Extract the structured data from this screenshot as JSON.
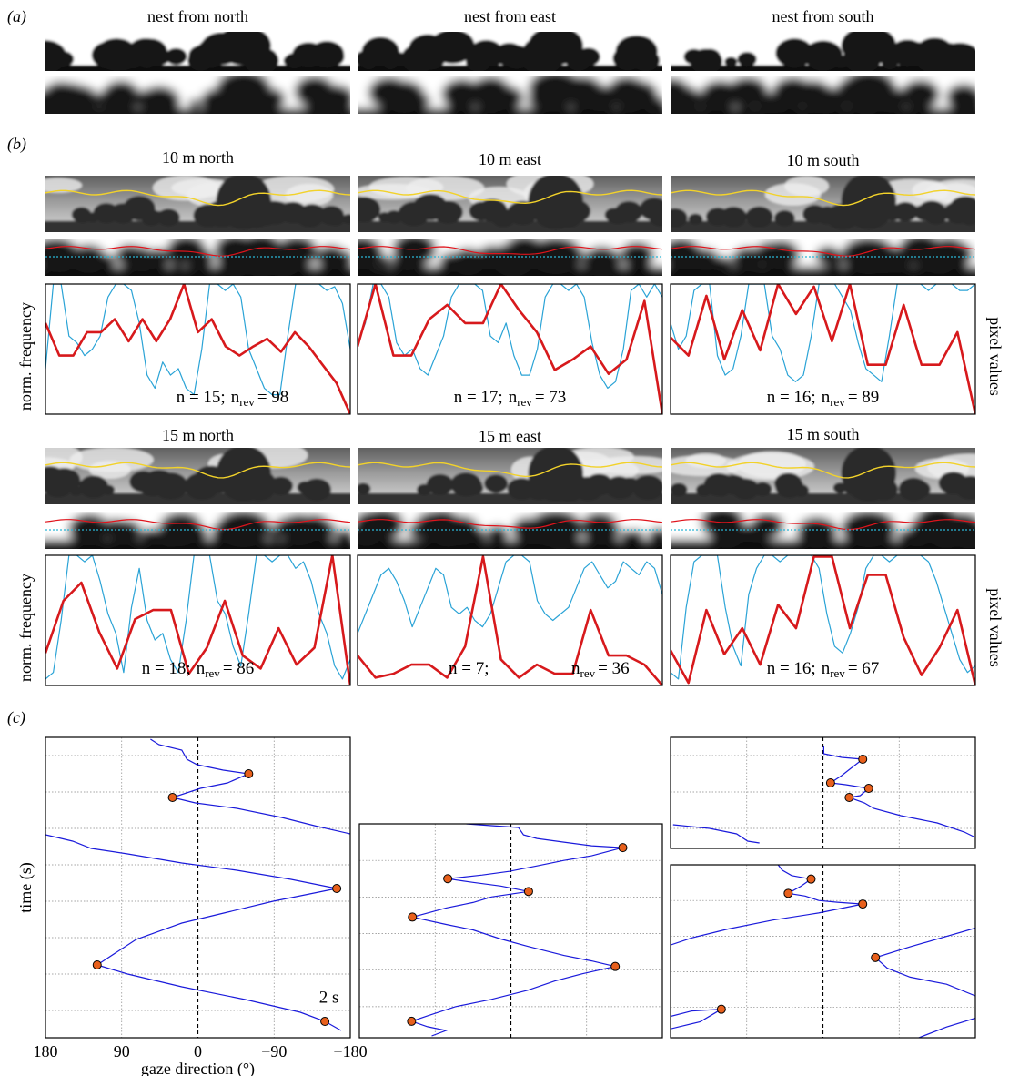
{
  "panels": {
    "a": {
      "label": "(a)",
      "titles": [
        "nest from north",
        "nest from east",
        "nest from south"
      ]
    },
    "b": {
      "label": "(b)"
    },
    "c": {
      "label": "(c)"
    }
  },
  "chart_data": [
    {
      "type": "line",
      "title": "10 m north",
      "ylabel": "norm. frequency",
      "annotation": [
        "n = 15;",
        "n",
        "rev",
        "= 98"
      ],
      "ylim": [
        0,
        1
      ],
      "y2lim": [
        0,
        1
      ],
      "series": [
        {
          "color": "#d7191c",
          "values": [
            0.7,
            0.45,
            0.45,
            0.63,
            0.63,
            0.73,
            0.56,
            0.73,
            0.56,
            0.73,
            1.0,
            0.63,
            0.73,
            0.52,
            0.45,
            0.52,
            0.58,
            0.48,
            0.63,
            0.52,
            0.38,
            0.24,
            0.0
          ]
        },
        {
          "color": "#2aa3d6",
          "axis": "y2",
          "values": [
            0.35,
            1.0,
            1.0,
            0.6,
            0.55,
            0.45,
            0.5,
            0.6,
            0.9,
            1.0,
            1.0,
            0.95,
            0.7,
            0.3,
            0.2,
            0.4,
            0.3,
            0.35,
            0.2,
            0.15,
            0.5,
            1.0,
            1.0,
            0.95,
            1.0,
            0.9,
            0.5,
            0.35,
            0.2,
            0.15,
            0.15,
            0.6,
            1.0,
            1.0,
            1.0,
            1.0,
            0.95,
            0.98,
            0.85,
            0.5
          ]
        }
      ]
    },
    {
      "type": "line",
      "title": "10 m east",
      "annotation": [
        "n = 17;",
        "n",
        "rev",
        "= 73"
      ],
      "ylim": [
        0,
        1
      ],
      "y2lim": [
        0,
        1
      ],
      "series": [
        {
          "color": "#d7191c",
          "values": [
            0.52,
            1.0,
            0.45,
            0.45,
            0.73,
            0.84,
            0.7,
            0.7,
            1.0,
            0.8,
            0.63,
            0.34,
            0.42,
            0.52,
            0.31,
            0.42,
            0.87,
            0.0
          ]
        },
        {
          "color": "#2aa3d6",
          "axis": "y2",
          "values": [
            0.55,
            0.7,
            1.0,
            1.0,
            0.9,
            0.55,
            0.45,
            0.5,
            0.35,
            0.3,
            0.45,
            0.6,
            0.9,
            1.0,
            1.0,
            1.0,
            0.95,
            0.6,
            0.55,
            0.7,
            0.45,
            0.3,
            0.3,
            0.5,
            0.9,
            1.0,
            1.0,
            0.95,
            1.0,
            0.9,
            0.55,
            0.3,
            0.2,
            0.25,
            0.5,
            0.95,
            1.0,
            0.9,
            1.0,
            0.9
          ]
        }
      ]
    },
    {
      "type": "line",
      "title": "10 m south",
      "y2label": "pixel values",
      "annotation": [
        "n = 16;",
        "n",
        "rev",
        "= 89"
      ],
      "ylim": [
        0,
        1
      ],
      "y2lim": [
        0,
        1
      ],
      "series": [
        {
          "color": "#d7191c",
          "values": [
            0.59,
            0.45,
            0.91,
            0.42,
            0.8,
            0.49,
            1.0,
            0.77,
            0.98,
            0.56,
            1.0,
            0.38,
            0.38,
            0.84,
            0.38,
            0.38,
            0.63,
            0.0
          ]
        },
        {
          "color": "#2aa3d6",
          "axis": "y2",
          "values": [
            0.7,
            0.5,
            0.6,
            0.95,
            1.0,
            1.0,
            0.45,
            0.3,
            0.35,
            0.6,
            1.0,
            1.0,
            1.0,
            0.6,
            0.5,
            0.3,
            0.25,
            0.3,
            0.6,
            1.0,
            1.0,
            1.0,
            0.9,
            0.8,
            0.55,
            0.35,
            0.3,
            0.25,
            0.6,
            1.0,
            1.0,
            1.0,
            1.0,
            0.95,
            1.0,
            1.0,
            1.0,
            0.95,
            0.95,
            1.0
          ]
        }
      ]
    },
    {
      "type": "line",
      "title": "15 m north",
      "ylabel": "norm. frequency",
      "annotation": [
        "n = 18;",
        "n",
        "rev",
        "= 86"
      ],
      "ylim": [
        0,
        1
      ],
      "y2lim": [
        0,
        1
      ],
      "series": [
        {
          "color": "#d7191c",
          "values": [
            0.25,
            0.65,
            0.79,
            0.41,
            0.13,
            0.51,
            0.58,
            0.58,
            0.09,
            0.29,
            0.65,
            0.23,
            0.13,
            0.44,
            0.16,
            0.29,
            1.0,
            0.0
          ]
        },
        {
          "color": "#2aa3d6",
          "axis": "y2",
          "values": [
            0.05,
            0.1,
            0.5,
            1.0,
            1.0,
            0.95,
            1.0,
            0.8,
            0.55,
            0.4,
            0.1,
            0.6,
            0.9,
            0.5,
            0.35,
            0.4,
            0.2,
            0.1,
            0.5,
            1.0,
            1.0,
            1.0,
            0.65,
            0.55,
            0.3,
            0.15,
            0.55,
            1.0,
            1.0,
            0.95,
            1.0,
            1.0,
            0.9,
            0.95,
            0.8,
            0.55,
            0.4,
            0.15,
            0.05,
            0.2
          ]
        }
      ]
    },
    {
      "type": "line",
      "title": "15 m east",
      "annotation": [
        "n = 7;",
        "n",
        "rev",
        "= 36"
      ],
      "ylim": [
        0,
        1
      ],
      "y2lim": [
        0,
        1
      ],
      "series": [
        {
          "color": "#d7191c",
          "values": [
            0.23,
            0.06,
            0.09,
            0.16,
            0.16,
            0.06,
            0.3,
            0.99,
            0.2,
            0.06,
            0.16,
            0.09,
            0.09,
            0.58,
            0.23,
            0.23,
            0.16,
            0.0
          ]
        },
        {
          "color": "#2aa3d6",
          "axis": "y2",
          "values": [
            0.4,
            0.55,
            0.7,
            0.85,
            0.9,
            0.8,
            0.65,
            0.45,
            0.6,
            0.75,
            0.9,
            0.85,
            0.6,
            0.55,
            0.6,
            0.5,
            0.45,
            0.55,
            0.75,
            0.95,
            1.0,
            1.0,
            0.95,
            0.65,
            0.55,
            0.5,
            0.55,
            0.6,
            0.75,
            0.9,
            0.95,
            0.85,
            0.75,
            0.8,
            0.95,
            0.9,
            0.85,
            0.95,
            0.9,
            0.7
          ]
        }
      ]
    },
    {
      "type": "line",
      "title": "15 m south",
      "y2label": "pixel values",
      "annotation": [
        "n = 16;",
        "n",
        "rev",
        "= 67"
      ],
      "ylim": [
        0,
        1
      ],
      "y2lim": [
        0,
        1
      ],
      "series": [
        {
          "color": "#d7191c",
          "values": [
            0.27,
            0.02,
            0.58,
            0.24,
            0.44,
            0.16,
            0.62,
            0.44,
            0.99,
            0.99,
            0.44,
            0.85,
            0.85,
            0.37,
            0.08,
            0.29,
            0.58,
            0.0
          ]
        },
        {
          "color": "#2aa3d6",
          "axis": "y2",
          "values": [
            0.1,
            0.05,
            0.6,
            0.95,
            1.0,
            1.0,
            1.0,
            0.6,
            0.3,
            0.15,
            0.7,
            0.9,
            1.0,
            1.0,
            0.95,
            1.0,
            1.0,
            1.0,
            1.0,
            0.9,
            0.55,
            0.3,
            0.25,
            0.4,
            0.6,
            0.9,
            1.0,
            1.0,
            0.95,
            1.0,
            1.0,
            1.0,
            1.0,
            0.95,
            0.8,
            0.6,
            0.4,
            0.2,
            0.1,
            0.15
          ]
        }
      ]
    },
    {
      "type": "line",
      "xlabel": "gaze direction (°)",
      "ylabel": "time (s)",
      "annotation": "2 s",
      "tick_labels": true,
      "grid": true,
      "xlim": [
        180,
        -180
      ],
      "xticks": [
        180,
        90,
        0,
        {
          "value": -90,
          "label": "−90"
        },
        {
          "value": -180,
          "label": "−180"
        }
      ],
      "ylim": [
        16.5,
        0
      ],
      "yticks": [
        1,
        3,
        5,
        7,
        9,
        11,
        13,
        15
      ],
      "series": [
        {
          "color": "#1a1adb",
          "x": [
            56,
            46,
            19,
            13,
            1,
            -30,
            -60,
            -35,
            -3,
            30,
            3,
            -46,
            -99,
            -142,
            -180,
            null,
            180,
            148,
            126,
            83,
            19,
            -46,
            -110,
            -164,
            -132,
            -89,
            -35,
            19,
            73,
            119,
            83,
            19,
            -56,
            -121,
            -150,
            -169
          ],
          "y": [
            0.1,
            0.4,
            0.7,
            1.2,
            1.5,
            1.8,
            2.0,
            2.5,
            2.8,
            3.3,
            3.6,
            3.9,
            4.4,
            4.9,
            5.3,
            null,
            5.35,
            5.7,
            6.1,
            6.4,
            6.9,
            7.3,
            7.8,
            8.3,
            8.6,
            9.0,
            9.6,
            10.2,
            11.1,
            12.5,
            13.0,
            13.7,
            14.4,
            15.1,
            15.6,
            16.1
          ]
        },
        {
          "type": "scatter",
          "color": "#e8601c",
          "x": [
            -60,
            30,
            -164,
            119,
            -150
          ],
          "y": [
            2.0,
            3.3,
            8.3,
            12.5,
            15.6
          ]
        }
      ]
    },
    {
      "type": "line",
      "tick_labels": false,
      "grid": true,
      "xlim": [
        180,
        -180
      ],
      "xticks": [
        90,
        0,
        -90
      ],
      "ylim": [
        11.7,
        0
      ],
      "yticks": [
        2,
        4,
        6,
        8,
        10
      ],
      "series": [
        {
          "color": "#1a1adb",
          "x": [
            53,
            23,
            -9,
            -15,
            -31,
            -63,
            -96,
            -133,
            -96,
            -63,
            -31,
            2,
            34,
            75,
            45,
            12,
            -21,
            23,
            45,
            77,
            117,
            77,
            45,
            12,
            -20,
            -63,
            -96,
            -124,
            -85,
            -52,
            -20,
            23,
            66,
            99,
            118,
            99,
            77,
            94
          ],
          "y": [
            0.0,
            0.1,
            0.2,
            0.6,
            0.8,
            1.0,
            1.2,
            1.3,
            1.75,
            2.0,
            2.3,
            2.6,
            2.8,
            3.0,
            3.2,
            3.4,
            3.7,
            4.0,
            4.3,
            4.6,
            5.1,
            5.5,
            5.8,
            6.3,
            6.7,
            7.2,
            7.5,
            7.8,
            8.2,
            8.6,
            9.1,
            9.6,
            10.0,
            10.5,
            10.8,
            11.1,
            11.3,
            11.6
          ]
        },
        {
          "type": "scatter",
          "color": "#e8601c",
          "x": [
            -133,
            75,
            -21,
            117,
            -124,
            118
          ],
          "y": [
            1.3,
            3.0,
            3.7,
            5.1,
            7.8,
            10.8
          ]
        }
      ]
    },
    {
      "type": "line",
      "tick_labels": false,
      "grid": true,
      "xlim": [
        180,
        -180
      ],
      "xticks": [
        90,
        0,
        -90
      ],
      "ylim": [
        6.1,
        0
      ],
      "yticks": [
        1,
        3,
        5
      ],
      "series": [
        {
          "color": "#1a1adb",
          "x": [
            -1,
            -1,
            -22,
            -47,
            -33,
            -22,
            -9,
            -27,
            -54,
            -44,
            -31,
            -49,
            -60,
            -92,
            -135,
            -167,
            -178,
            null,
            177,
            134,
            102,
            89,
            75
          ],
          "y": [
            0.5,
            0.9,
            1.1,
            1.2,
            1.7,
            2.1,
            2.5,
            2.6,
            2.8,
            3.2,
            3.3,
            3.6,
            3.9,
            4.3,
            4.7,
            5.2,
            5.45,
            null,
            4.8,
            5.0,
            5.3,
            5.7,
            5.8
          ]
        },
        {
          "type": "scatter",
          "color": "#e8601c",
          "x": [
            -47,
            -9,
            -54,
            -31
          ],
          "y": [
            1.2,
            2.5,
            2.8,
            3.3
          ]
        }
      ]
    },
    {
      "type": "line",
      "tick_labels": false,
      "grid": true,
      "xlim": [
        180,
        -180
      ],
      "xticks": [
        90,
        0,
        -90
      ],
      "ylim": [
        9.7,
        0
      ],
      "yticks": [
        2,
        4,
        6,
        8
      ],
      "series": [
        {
          "color": "#1a1adb",
          "x": [
            53,
            48,
            37,
            14,
            26,
            41,
            21,
            5,
            -17,
            -47,
            5,
            59,
            112,
            155,
            180,
            null,
            -180,
            -103,
            -62,
            -76,
            -103,
            -146,
            -180,
            null,
            180,
            155,
            120,
            145,
            180,
            null,
            -180,
            -146,
            -113
          ],
          "y": [
            0.0,
            0.3,
            0.6,
            0.8,
            1.2,
            1.6,
            1.75,
            2.0,
            2.1,
            2.2,
            2.7,
            3.1,
            3.6,
            4.1,
            4.5,
            null,
            3.55,
            4.6,
            5.2,
            5.8,
            6.3,
            6.7,
            7.35,
            null,
            8.5,
            8.2,
            8.1,
            8.8,
            9.2,
            null,
            8.6,
            9.1,
            9.7
          ]
        },
        {
          "type": "scatter",
          "color": "#e8601c",
          "x": [
            14,
            41,
            -47,
            -62,
            120
          ],
          "y": [
            0.8,
            1.6,
            2.2,
            5.2,
            8.1
          ]
        }
      ]
    }
  ]
}
